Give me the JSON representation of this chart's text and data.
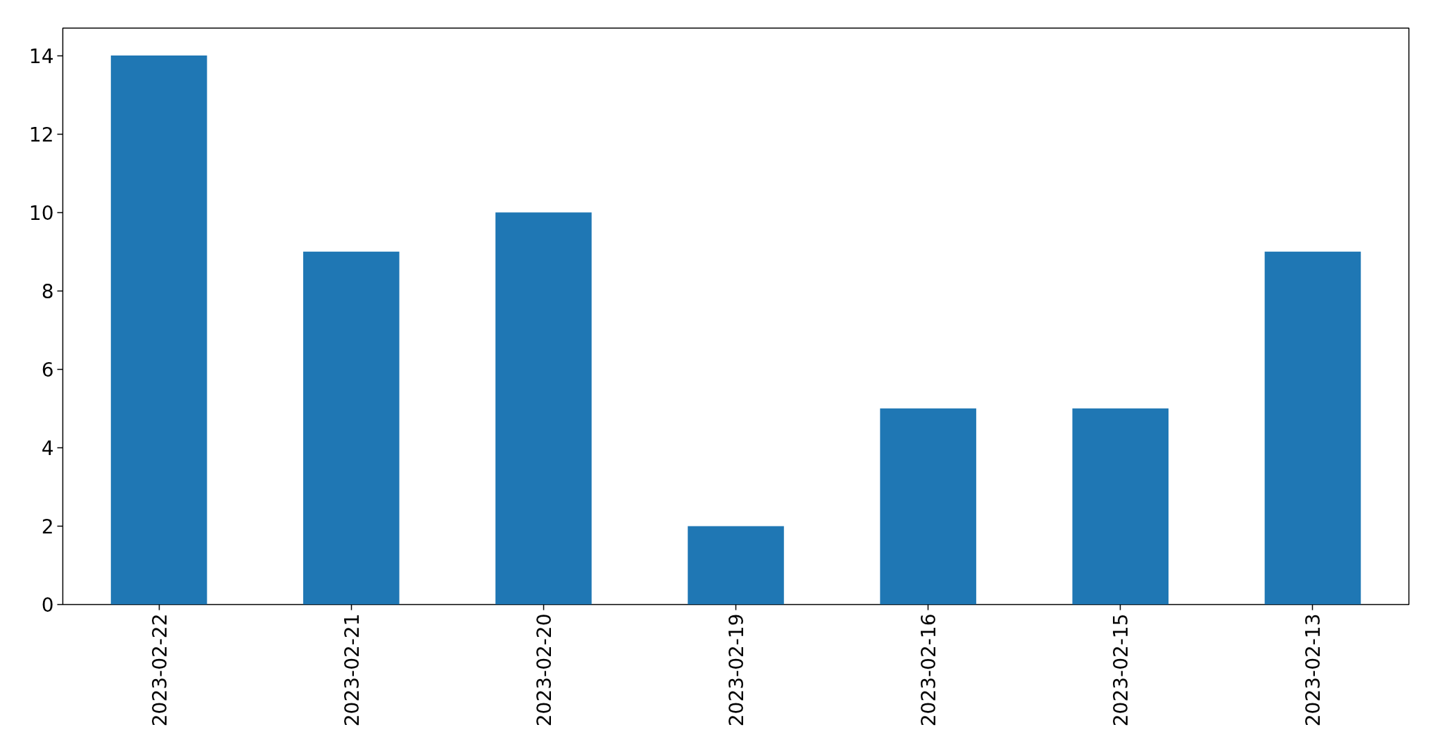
{
  "chart_data": {
    "type": "bar",
    "categories": [
      "2023-02-22",
      "2023-02-21",
      "2023-02-20",
      "2023-02-19",
      "2023-02-16",
      "2023-02-15",
      "2023-02-13"
    ],
    "values": [
      14,
      9,
      10,
      2,
      5,
      5,
      9
    ],
    "color": "#1f77b4",
    "ylim": [
      0,
      14.7
    ],
    "yticks": [
      0,
      2,
      4,
      6,
      8,
      10,
      12,
      14
    ],
    "grid": false
  }
}
